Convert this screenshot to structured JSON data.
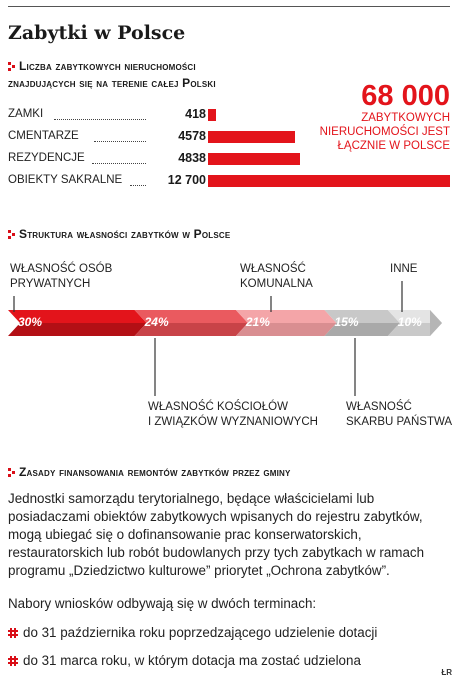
{
  "title": "Zabytki w Polsce",
  "section1": {
    "heading_line1": "Liczba zabytkowych nieruchomości",
    "heading_line2": "znajdujących się na terenie całej Polski"
  },
  "section2": {
    "heading": "Struktura własności zabytków w Polsce"
  },
  "section3": {
    "heading": "Zasady finansowania remontów zabytków przez gminy",
    "paragraph": "Jednostki samorządu terytorialnego, będące właścicielami lub posiadaczami obiektów zabytkowych wpisanych do rejestru zabytków, mogą ubiegać się o dofinansowanie prac konserwatorskich, restauratorskich lub robót budowlanych przy tych zabytkach w ramach programu „Dziedzictwo kulturowe” priorytet „Ochrona zabytków”.",
    "terms_intro": "Nabory wniosków odbywają się w dwóch terminach:",
    "term1": "do 31 października roku poprzedzającego udzielenie dotacji",
    "term2": "do 31 marca roku, w którym dotacja ma zostać udzielona"
  },
  "total": {
    "value": "68 000",
    "desc_line1": "zabytkowych",
    "desc_line2": "nieruchomości jest",
    "desc_line3": "łącznie w Polsce"
  },
  "credit": "ŁR",
  "colors": {
    "accent": "#e3141b",
    "dark_red": "#c60c14",
    "gray_text": "#222222"
  },
  "chart_data": [
    {
      "type": "bar",
      "orientation": "horizontal",
      "categories": [
        "zamki",
        "cmentarze",
        "rezydencje",
        "obiekty sakralne"
      ],
      "value_labels": [
        "418",
        "4578",
        "4838",
        "12 700"
      ],
      "values": [
        418,
        4578,
        4838,
        12700
      ],
      "grid": false
    },
    {
      "type": "bar",
      "orientation": "stacked-horizontal",
      "categories": [
        "Własność osób prywatnych",
        "Własność kościołów i związków wyznaniowych",
        "Własność komunalna",
        "Własność Skarbu Państwa",
        "Inne"
      ],
      "label_lines": [
        [
          "Własność osób",
          "prywatnych"
        ],
        [
          "Własność kościołów",
          "i związków wyznaniowych"
        ],
        [
          "Własność",
          "komunalna"
        ],
        [
          "Własność",
          "skarbu państwa"
        ],
        [
          "Inne"
        ]
      ],
      "value_labels": [
        "30%",
        "24%",
        "21%",
        "15%",
        "10%"
      ],
      "values": [
        30,
        24,
        21,
        15,
        10
      ],
      "colors": [
        "#e3141b",
        "#ea5a5f",
        "#f4a5a8",
        "#c8c8c8",
        "#e4e4e4"
      ]
    }
  ]
}
